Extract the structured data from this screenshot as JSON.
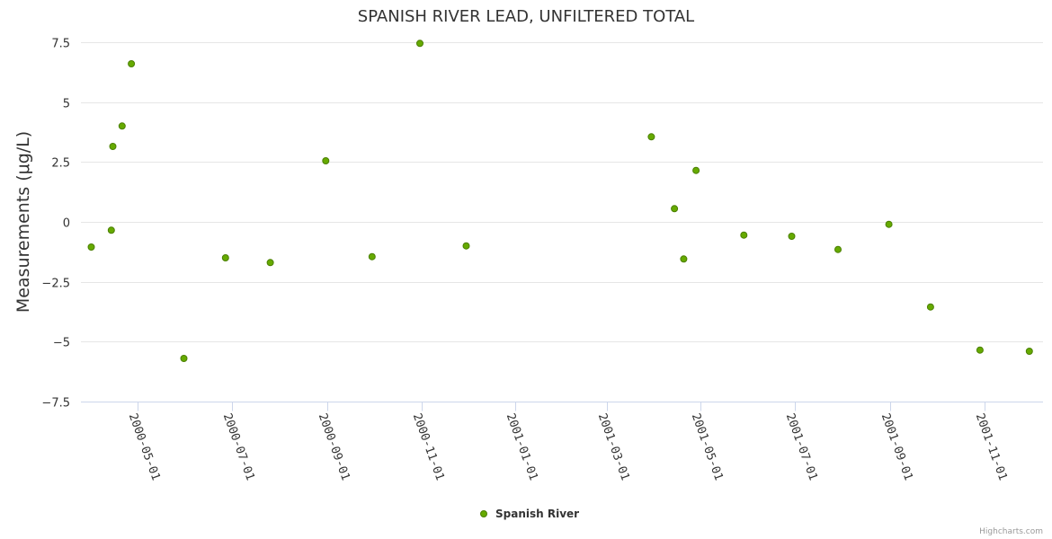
{
  "chart_data": {
    "type": "scatter",
    "title": "SPANISH RIVER LEAD, UNFILTERED TOTAL",
    "xlabel": "",
    "ylabel": "Measurements (μg/L)",
    "ylim": [
      -7.5,
      7.5
    ],
    "y_ticks": [
      7.5,
      5,
      2.5,
      0,
      -2.5,
      -5,
      -7.5
    ],
    "y_tick_labels": [
      "7.5",
      "5",
      "2.5",
      "0",
      "−2.5",
      "−5",
      "−7.5"
    ],
    "x_tick_labels": [
      "2000-05-01",
      "2000-07-01",
      "2000-09-01",
      "2000-11-01",
      "2001-01-01",
      "2001-03-01",
      "2001-05-01",
      "2001-07-01",
      "2001-09-01",
      "2001-11-01"
    ],
    "x_range": [
      "2000-04-01",
      "2001-12-01"
    ],
    "grid": true,
    "legend_position": "bottom-center",
    "color": "#66aa00",
    "series": [
      {
        "name": "Spanish River",
        "points": [
          {
            "x": "2000-04-01",
            "y": -1.05
          },
          {
            "x": "2000-04-14",
            "y": -0.35
          },
          {
            "x": "2000-04-15",
            "y": 3.15
          },
          {
            "x": "2000-04-21",
            "y": 4.0
          },
          {
            "x": "2000-04-27",
            "y": 6.6
          },
          {
            "x": "2000-05-31",
            "y": -5.7
          },
          {
            "x": "2000-06-27",
            "y": -1.5
          },
          {
            "x": "2000-07-26",
            "y": -1.7
          },
          {
            "x": "2000-08-31",
            "y": 2.55
          },
          {
            "x": "2000-09-30",
            "y": -1.45
          },
          {
            "x": "2000-10-31",
            "y": 7.45
          },
          {
            "x": "2000-11-30",
            "y": -1.0
          },
          {
            "x": "2001-03-30",
            "y": 3.55
          },
          {
            "x": "2001-04-14",
            "y": 0.55
          },
          {
            "x": "2001-04-20",
            "y": -1.55
          },
          {
            "x": "2001-04-28",
            "y": 2.15
          },
          {
            "x": "2001-05-29",
            "y": -0.55
          },
          {
            "x": "2001-06-29",
            "y": -0.6
          },
          {
            "x": "2001-07-29",
            "y": -1.15
          },
          {
            "x": "2001-08-31",
            "y": -0.1
          },
          {
            "x": "2001-09-27",
            "y": -3.55
          },
          {
            "x": "2001-10-29",
            "y": -5.35
          },
          {
            "x": "2001-11-30",
            "y": -5.4
          }
        ]
      }
    ]
  },
  "credits": "Highcharts.com"
}
